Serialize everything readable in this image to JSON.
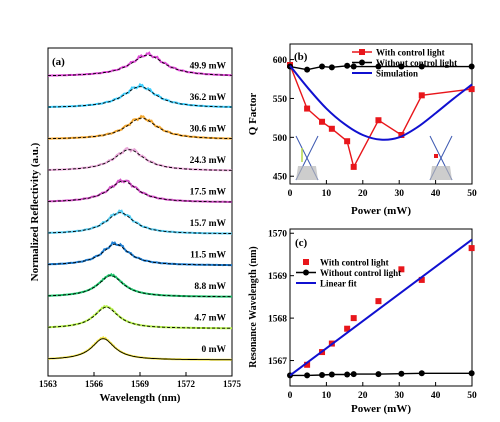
{
  "panel_a": {
    "label": "(a)",
    "xlabel": "Wavelength (nm)",
    "ylabel": "Normalized Reflectivity (a.u.)",
    "x_ticks": [
      "1563",
      "1566",
      "1569",
      "1572",
      "1575"
    ],
    "traces": [
      {
        "label": "0 mW",
        "color": "#f5e642"
      },
      {
        "label": "4.7 mW",
        "color": "#b6f04a"
      },
      {
        "label": "8.8 mW",
        "color": "#1fc46c"
      },
      {
        "label": "11.5 mW",
        "color": "#1e7fd4"
      },
      {
        "label": "15.7 mW",
        "color": "#56cdf2"
      },
      {
        "label": "17.5 mW",
        "color": "#d24fc6"
      },
      {
        "label": "24.3 mW",
        "color": "#e8a8d8"
      },
      {
        "label": "30.6 mW",
        "color": "#f4a830"
      },
      {
        "label": "36.2 mW",
        "color": "#3fd0ff"
      },
      {
        "label": "49.9 mW",
        "color": "#e04ad8"
      }
    ]
  },
  "chart_data": [
    {
      "type": "line",
      "panel": "(a)",
      "xlabel": "Wavelength (nm)",
      "ylabel": "Normalized Reflectivity (a.u.)",
      "xlim": [
        1563,
        1575
      ],
      "series": [
        {
          "name": "0 mW",
          "peak": 1566.6
        },
        {
          "name": "4.7 mW",
          "peak": 1566.8
        },
        {
          "name": "8.8 mW",
          "peak": 1567.1
        },
        {
          "name": "11.5 mW",
          "peak": 1567.4
        },
        {
          "name": "15.7 mW",
          "peak": 1567.7
        },
        {
          "name": "17.5 mW",
          "peak": 1567.9
        },
        {
          "name": "24.3 mW",
          "peak": 1568.3
        },
        {
          "name": "30.6 mW",
          "peak": 1569.1
        },
        {
          "name": "36.2 mW",
          "peak": 1569.0
        },
        {
          "name": "49.9 mW",
          "peak": 1569.5
        }
      ]
    },
    {
      "type": "line",
      "panel": "(b)",
      "xlabel": "Power (mW)",
      "ylabel": "Q Factor",
      "xlim": [
        0,
        50
      ],
      "ylim": [
        440,
        620
      ],
      "x_ticks": [
        "0",
        "10",
        "20",
        "30",
        "40",
        "50"
      ],
      "y_ticks": [
        "450",
        "500",
        "550",
        "600"
      ],
      "legend_position": "top-right",
      "series": [
        {
          "name": "With control light",
          "color": "#e8161b",
          "marker": "square",
          "x": [
            0,
            4.7,
            8.8,
            11.5,
            15.7,
            17.5,
            24.3,
            30.6,
            36.2,
            49.9
          ],
          "y": [
            593,
            537,
            520,
            511,
            495,
            462,
            522,
            503,
            554,
            562
          ]
        },
        {
          "name": "Without control light",
          "color": "#000000",
          "marker": "circle",
          "x": [
            0,
            4.7,
            8.8,
            11.5,
            15.7,
            17.5,
            24.3,
            30.6,
            36.2,
            49.9
          ],
          "y": [
            591,
            587,
            591,
            590,
            592,
            591,
            591,
            591,
            591,
            591
          ]
        },
        {
          "name": "Simulation",
          "color": "#1010d0",
          "marker": "none",
          "x": [
            0,
            5,
            10,
            15,
            20,
            25,
            30,
            35,
            40,
            45,
            50
          ],
          "y": [
            592,
            563,
            537,
            517,
            503,
            497,
            500,
            513,
            531,
            550,
            568
          ]
        }
      ]
    },
    {
      "type": "scatter",
      "panel": "(c)",
      "xlabel": "Power (mW)",
      "ylabel": "Resonance Wavelength (nm)",
      "xlim": [
        0,
        50
      ],
      "ylim": [
        1566.4,
        1570.1
      ],
      "x_ticks": [
        "0",
        "10",
        "20",
        "30",
        "40",
        "50"
      ],
      "y_ticks": [
        "1567",
        "1568",
        "1569",
        "1570"
      ],
      "legend_position": "top-left",
      "series": [
        {
          "name": "With control light",
          "color": "#e8161b",
          "marker": "square",
          "x": [
            4.7,
            8.8,
            11.5,
            15.7,
            17.5,
            24.3,
            30.6,
            36.2,
            49.9
          ],
          "y": [
            1566.9,
            1567.2,
            1567.4,
            1567.75,
            1568.0,
            1568.4,
            1569.15,
            1568.9,
            1569.65
          ]
        },
        {
          "name": "Without control light",
          "color": "#000000",
          "marker": "circle",
          "x": [
            0,
            4.7,
            8.8,
            11.5,
            15.7,
            17.5,
            24.3,
            30.6,
            36.2,
            49.9
          ],
          "y": [
            1566.65,
            1566.65,
            1566.66,
            1566.67,
            1566.67,
            1566.68,
            1566.68,
            1566.69,
            1566.7,
            1566.7
          ]
        },
        {
          "name": "Linear fit",
          "color": "#1010d0",
          "marker": "none",
          "x": [
            0,
            50
          ],
          "y": [
            1566.65,
            1569.85
          ]
        }
      ]
    }
  ]
}
